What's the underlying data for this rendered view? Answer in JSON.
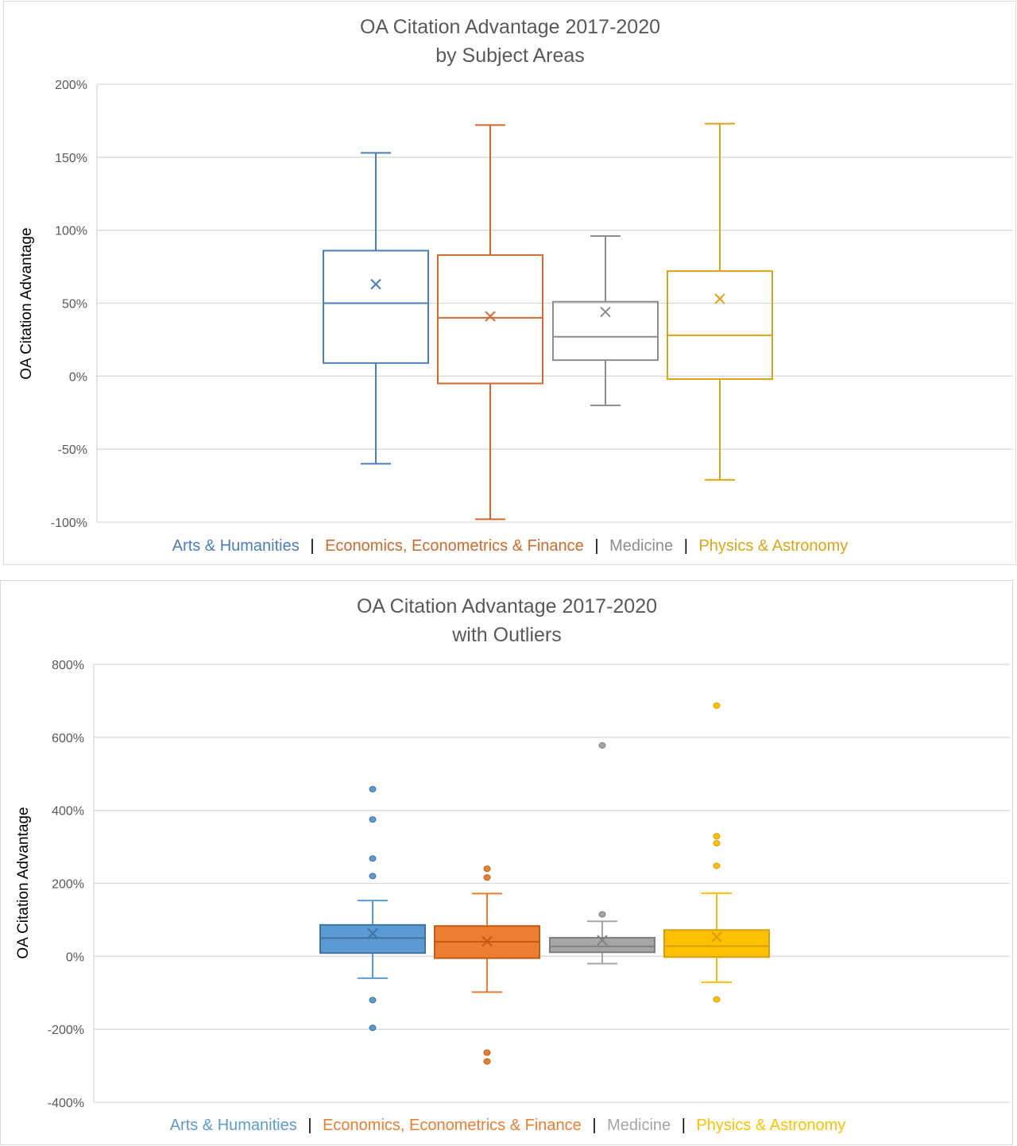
{
  "chart_data": [
    {
      "type": "box",
      "title": "OA Citation Advantage 2017-2020",
      "subtitle": "by Subject Areas",
      "xlabel": "",
      "ylabel": "OA Citation Advantage",
      "ylim": [
        -100,
        200
      ],
      "yticks": [
        200,
        150,
        100,
        50,
        0,
        -50,
        -100
      ],
      "ytick_labels": [
        "200%",
        "150%",
        "100%",
        "50%",
        "0%",
        "-50%",
        "-100%"
      ],
      "grid": true,
      "filled": false,
      "show_outliers": false,
      "legend_separator": "|",
      "series": [
        {
          "name": "Arts & Humanities",
          "color": "#4a7ebb",
          "min": -60,
          "q1": 9,
          "median": 50,
          "q3": 86,
          "max": 153,
          "mean": 63,
          "outliers": []
        },
        {
          "name": "Economics, Econometrics & Finance",
          "color": "#d0692b",
          "min": -98,
          "q1": -5,
          "median": 40,
          "q3": 83,
          "max": 172,
          "mean": 41,
          "outliers": []
        },
        {
          "name": "Medicine",
          "color": "#8c8c8c",
          "min": -20,
          "q1": 11,
          "median": 27,
          "q3": 51,
          "max": 96,
          "mean": 44,
          "outliers": []
        },
        {
          "name": "Physics & Astronomy",
          "color": "#dba516",
          "min": -71,
          "q1": -2,
          "median": 28,
          "q3": 72,
          "max": 173,
          "mean": 53,
          "outliers": []
        }
      ]
    },
    {
      "type": "box",
      "title": "OA Citation Advantage 2017-2020",
      "subtitle": "with Outliers",
      "xlabel": "",
      "ylabel": "OA Citation Advantage",
      "ylim": [
        -400,
        800
      ],
      "yticks": [
        800,
        600,
        400,
        200,
        0,
        -200,
        -400
      ],
      "ytick_labels": [
        "800%",
        "600%",
        "400%",
        "200%",
        "0%",
        "-200%",
        "-400%"
      ],
      "grid": true,
      "filled": true,
      "show_outliers": true,
      "legend_separator": "|",
      "series": [
        {
          "name": "Arts & Humanities",
          "color": "#5b9bd5",
          "edge": "#41719c",
          "min": -60,
          "q1": 9,
          "median": 50,
          "q3": 86,
          "max": 153,
          "mean": 63,
          "outliers": [
            458,
            375,
            268,
            220,
            -120,
            -196
          ]
        },
        {
          "name": "Economics, Econometrics & Finance",
          "color": "#ed7d31",
          "edge": "#c55a11",
          "min": -98,
          "q1": -5,
          "median": 40,
          "q3": 83,
          "max": 172,
          "mean": 41,
          "outliers": [
            240,
            216,
            -264,
            -288
          ]
        },
        {
          "name": "Medicine",
          "color": "#a5a5a5",
          "edge": "#7f7f7f",
          "min": -20,
          "q1": 11,
          "median": 27,
          "q3": 51,
          "max": 96,
          "mean": 44,
          "outliers": [
            578,
            115
          ]
        },
        {
          "name": "Physics & Astronomy",
          "color": "#ffc000",
          "edge": "#d6a000",
          "min": -71,
          "q1": -2,
          "median": 28,
          "q3": 72,
          "max": 173,
          "mean": 53,
          "outliers": [
            687,
            329,
            310,
            248,
            -118
          ]
        }
      ]
    }
  ]
}
